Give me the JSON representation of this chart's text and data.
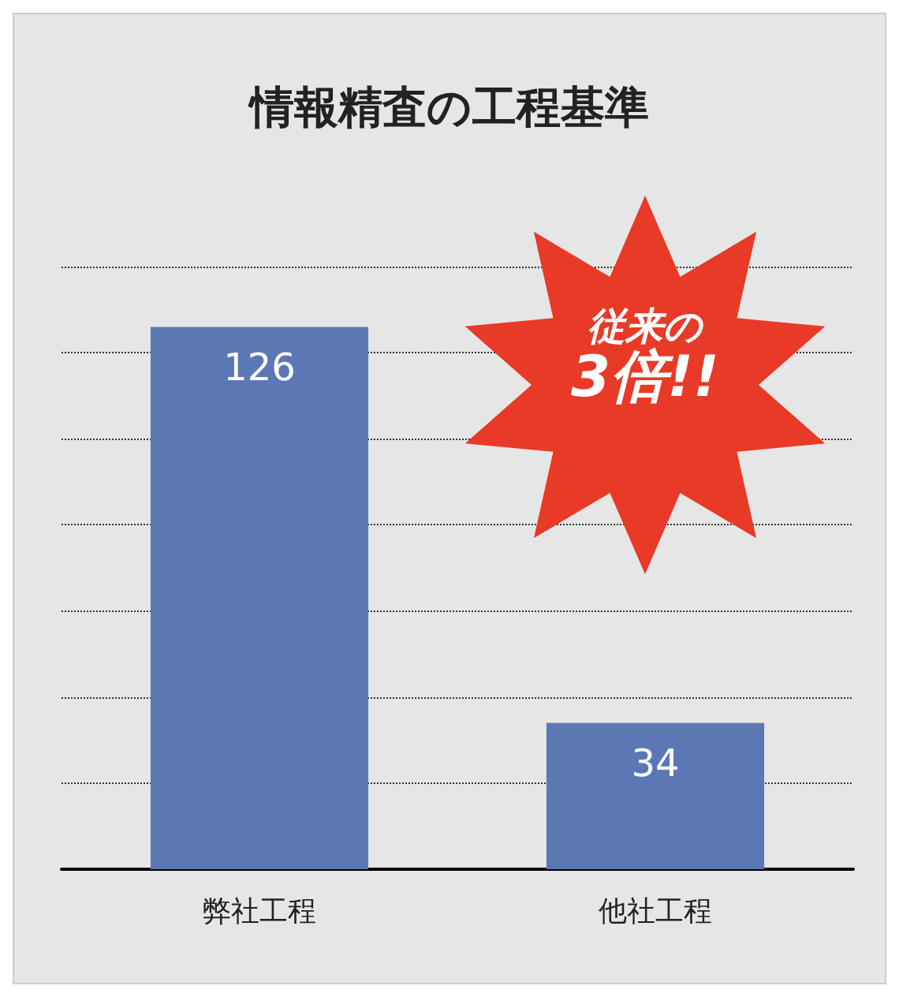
{
  "chart_data": {
    "type": "bar",
    "title": "情報精査の工程基準",
    "categories": [
      "弊社工程",
      "他社工程"
    ],
    "values": [
      126,
      34
    ],
    "color": "#5b78b4",
    "data_labels": true,
    "ylim": [
      0,
      140
    ],
    "yticks": [
      {
        "value": 0,
        "label": null
      },
      {
        "value": 20,
        "label": null
      },
      {
        "value": 40,
        "label": null
      },
      {
        "value": 60,
        "label": null
      },
      {
        "value": 80,
        "label": null
      },
      {
        "value": 100,
        "label": null
      },
      {
        "value": 120,
        "label": null
      },
      {
        "value": 140,
        "label": null
      }
    ],
    "grid": "y",
    "tick_labels": "x",
    "line_style": "dotted",
    "annotations": [
      "従来の",
      "3倍!!"
    ]
  }
}
